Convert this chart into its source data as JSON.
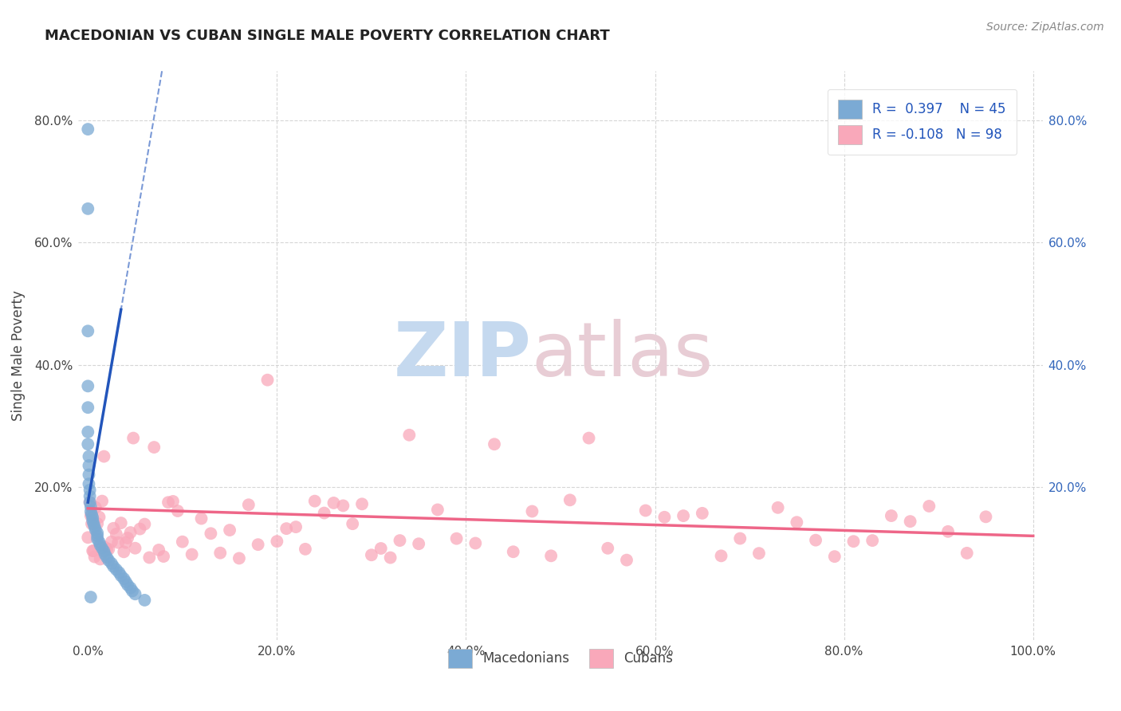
{
  "title": "MACEDONIAN VS CUBAN SINGLE MALE POVERTY CORRELATION CHART",
  "source": "Source: ZipAtlas.com",
  "ylabel": "Single Male Poverty",
  "xlim": [
    -0.01,
    1.01
  ],
  "ylim": [
    -0.05,
    0.88
  ],
  "x_ticks": [
    0.0,
    0.2,
    0.4,
    0.6,
    0.8,
    1.0
  ],
  "x_tick_labels": [
    "0.0%",
    "20.0%",
    "40.0%",
    "60.0%",
    "80.0%",
    "100.0%"
  ],
  "y_ticks": [
    0.0,
    0.2,
    0.4,
    0.6,
    0.8
  ],
  "y_tick_labels": [
    "",
    "20.0%",
    "40.0%",
    "60.0%",
    "80.0%"
  ],
  "right_y_ticks": [
    0.2,
    0.4,
    0.6,
    0.8
  ],
  "right_y_tick_labels": [
    "20.0%",
    "40.0%",
    "60.0%",
    "80.0%"
  ],
  "macedonian_color": "#7BAAD4",
  "cuban_color": "#F9A8BA",
  "macedonian_line_color": "#2255BB",
  "cuban_line_color": "#EE6688",
  "grid_color": "#CCCCCC",
  "R_mac": 0.397,
  "N_mac": 45,
  "R_cub": -0.108,
  "N_cub": 98,
  "mac_trend_x0": 0.0,
  "mac_trend_y0": 0.175,
  "mac_trend_slope": 9.0,
  "cub_trend_x0": 0.0,
  "cub_trend_y0": 0.165,
  "cub_trend_slope": -0.045,
  "background_color": "#FFFFFF",
  "watermark_zip": "ZIP",
  "watermark_atlas": "atlas",
  "watermark_color_zip": "#C8DAEF",
  "watermark_color_atlas": "#D4C8D0"
}
